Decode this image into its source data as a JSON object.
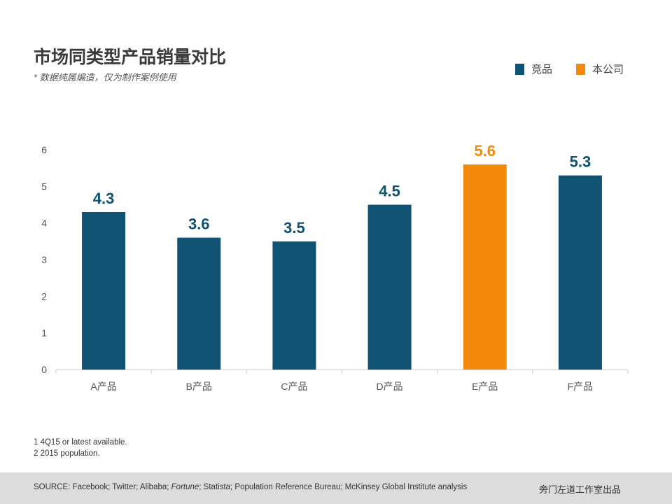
{
  "title": "市场同类型产品销量对比",
  "subtitle": "* 数据纯属编造，仅为制作案例使用",
  "legend": [
    {
      "label": "竞品",
      "color": "#0f5273"
    },
    {
      "label": "本公司",
      "color": "#f38a0c"
    }
  ],
  "chart_data": {
    "type": "bar",
    "categories": [
      "A产品",
      "B产品",
      "C产品",
      "D产品",
      "E产品",
      "F产品"
    ],
    "series": [
      {
        "values": [
          4.3,
          3.6,
          3.5,
          4.5,
          5.6,
          5.3
        ]
      }
    ],
    "highlight_index": 4,
    "colors": {
      "default": "#0f5273",
      "highlight": "#f38a0c"
    },
    "data_labels": [
      "4.3",
      "3.6",
      "3.5",
      "4.5",
      "5.6",
      "5.3"
    ],
    "yticks": [
      "0",
      "1",
      "2",
      "3",
      "4",
      "5",
      "6"
    ],
    "ylim": [
      0,
      6
    ],
    "grid": false,
    "legend_position": "top-right"
  },
  "notes": [
    "1 4Q15 or latest available.",
    "2 2015 population."
  ],
  "footer": {
    "source_prefix": "SOURCE: Facebook; Twitter; Alibaba; ",
    "source_italic": "Fortune",
    "source_suffix": "; Statista; Population Reference Bureau; McKinsey Global Institute analysis",
    "brand": "旁门左道工作室出品"
  }
}
